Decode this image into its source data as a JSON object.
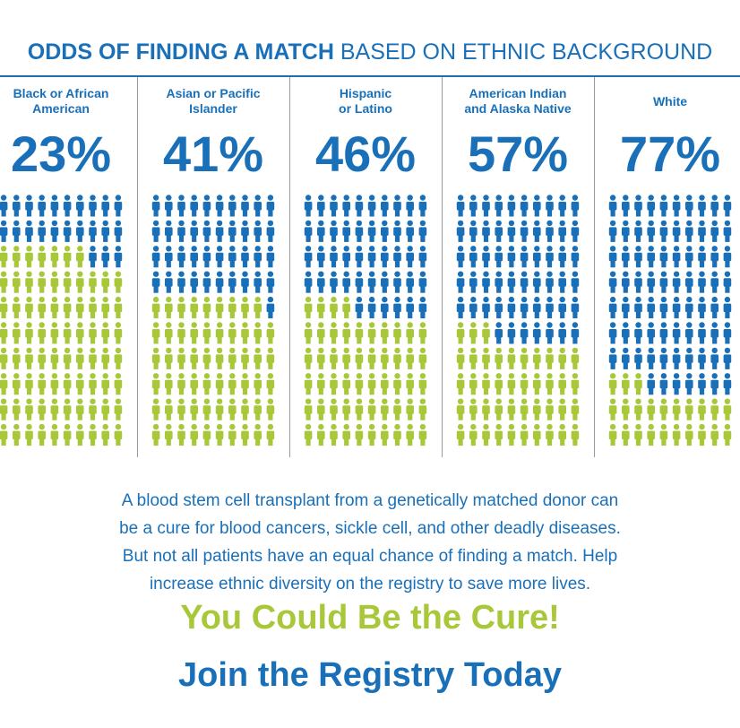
{
  "title_bold": "ODDS OF FINDING A MATCH",
  "title_rest": "BASED ON ETHNIC BACKGROUND",
  "colors": {
    "blue": "#1a70b8",
    "green": "#a8c83a"
  },
  "chart_data": {
    "type": "pictograph",
    "title": "ODDS OF FINDING A MATCH BASED ON ETHNIC BACKGROUND",
    "unit": "%",
    "total_icons": 100,
    "categories": [
      [
        "Black or African",
        "American"
      ],
      [
        "Asian or Pacific",
        "Islander"
      ],
      [
        "Hispanic",
        "or Latino"
      ],
      [
        "American Indian",
        "and Alaska Native"
      ],
      [
        "White"
      ]
    ],
    "labels": [
      "23%",
      "41%",
      "46%",
      "57%",
      "77%"
    ],
    "values": [
      23,
      41,
      46,
      57,
      77
    ]
  },
  "body_lines": [
    "A blood stem cell transplant from a genetically matched donor can",
    "be a cure for blood cancers, sickle cell, and other deadly diseases.",
    "But not all patients have an equal chance of finding a match. Help",
    "increase ethnic diversity on the registry to save more lives."
  ],
  "cta_primary": "You Could Be the Cure!",
  "cta_secondary": "Join the Registry Today"
}
